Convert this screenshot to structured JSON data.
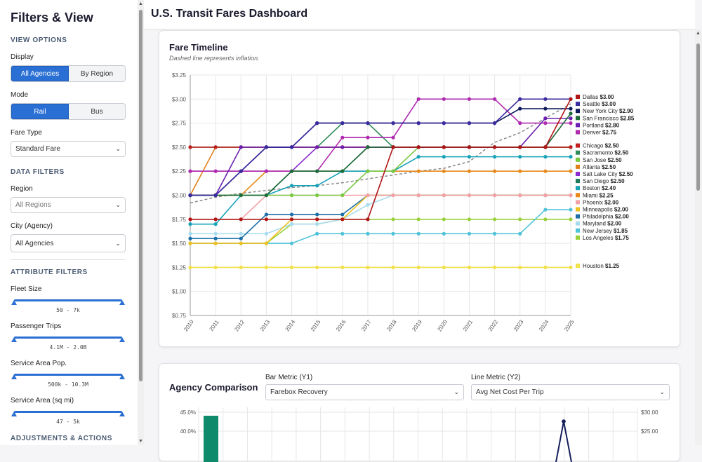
{
  "sidebar": {
    "title": "Filters & View",
    "view_options_heading": "VIEW OPTIONS",
    "display_label": "Display",
    "display_options": [
      "All Agencies",
      "By Region"
    ],
    "mode_label": "Mode",
    "mode_options": [
      "Rail",
      "Bus"
    ],
    "fare_type_label": "Fare Type",
    "fare_type_value": "Standard Fare",
    "data_filters_heading": "DATA FILTERS",
    "region_label": "Region",
    "region_value": "All Regions",
    "city_label": "City (Agency)",
    "city_value": "All Agencies",
    "attribute_filters_heading": "ATTRIBUTE FILTERS",
    "fleet_label": "Fleet Size",
    "fleet_range": "50 - 7k",
    "trips_label": "Passenger Trips",
    "trips_range": "4.1M - 2.0B",
    "pop_label": "Service Area Pop.",
    "pop_range": "500k - 10.3M",
    "area_label": "Service Area (sq mi)",
    "area_range": "47 - 5k",
    "adjustments_heading": "ADJUSTMENTS & ACTIONS"
  },
  "header": {
    "title": "U.S. Transit Fares Dashboard"
  },
  "timeline": {
    "title": "Fare Timeline",
    "subtitle": "Dashed line represents inflation."
  },
  "comparison": {
    "title": "Agency Comparison",
    "bar_metric_label": "Bar Metric (Y1)",
    "bar_metric_value": "Farebox Recovery",
    "line_metric_label": "Line Metric (Y2)",
    "line_metric_value": "Avg Net Cost Per Trip",
    "y1_ticks": [
      "45.0%",
      "40.0%"
    ],
    "y2_ticks": [
      "$30.00",
      "$25.00"
    ]
  },
  "chart_data": {
    "type": "line",
    "x": [
      2010,
      2011,
      2012,
      2013,
      2014,
      2015,
      2016,
      2017,
      2018,
      2019,
      2020,
      2021,
      2022,
      2023,
      2024,
      2025
    ],
    "ylim": [
      0.75,
      3.25
    ],
    "yticks": [
      "$0.75",
      "$1.00",
      "$1.25",
      "$1.50",
      "$1.75",
      "$2.00",
      "$2.25",
      "$2.50",
      "$2.75",
      "$3.00",
      "$3.25"
    ],
    "grid": true,
    "legend_position": "right",
    "series": [
      {
        "name": "Dallas",
        "label": "$3.00",
        "color": "#b01515",
        "values": [
          1.75,
          1.75,
          1.75,
          1.75,
          1.75,
          1.75,
          1.75,
          1.75,
          2.5,
          2.5,
          2.5,
          2.5,
          2.5,
          2.5,
          2.5,
          3.0
        ]
      },
      {
        "name": "Seattle",
        "label": "$3.00",
        "color": "#3a2aa0",
        "values": [
          2.0,
          2.0,
          2.25,
          2.5,
          2.5,
          2.75,
          2.75,
          2.75,
          2.75,
          2.75,
          2.75,
          2.75,
          2.75,
          3.0,
          3.0,
          3.0
        ]
      },
      {
        "name": "New York City",
        "label": "$2.90",
        "color": "#0f1a5c",
        "values": [
          2.0,
          2.0,
          2.25,
          2.5,
          2.5,
          2.75,
          2.75,
          2.75,
          2.75,
          2.75,
          2.75,
          2.75,
          2.75,
          2.9,
          2.9,
          2.9
        ]
      },
      {
        "name": "San Francisco",
        "label": "$2.85",
        "color": "#1e6b3a",
        "values": [
          2.0,
          2.0,
          2.0,
          2.0,
          2.25,
          2.25,
          2.25,
          2.5,
          2.5,
          2.5,
          2.5,
          2.5,
          2.5,
          2.5,
          2.5,
          2.85
        ]
      },
      {
        "name": "Portland",
        "label": "$2.80",
        "color": "#6a1fb0",
        "values": [
          2.0,
          2.0,
          2.5,
          2.5,
          2.5,
          2.5,
          2.5,
          2.5,
          2.5,
          2.5,
          2.5,
          2.5,
          2.5,
          2.5,
          2.8,
          2.8
        ]
      },
      {
        "name": "Denver",
        "label": "$2.75",
        "color": "#b02ab0",
        "values": [
          2.25,
          2.25,
          2.25,
          2.25,
          2.25,
          2.25,
          2.6,
          2.6,
          2.6,
          3.0,
          3.0,
          3.0,
          3.0,
          2.75,
          2.75,
          2.75
        ]
      },
      {
        "name": "Chicago",
        "label": "$2.50",
        "color": "#c21f1f",
        "values": [
          2.5,
          2.5,
          2.5,
          2.5,
          2.5,
          2.5,
          2.5,
          2.5,
          2.5,
          2.5,
          2.5,
          2.5,
          2.5,
          2.5,
          2.5,
          2.5
        ]
      },
      {
        "name": "Sacramento",
        "label": "$2.50",
        "color": "#2e8b57",
        "values": [
          2.5,
          2.5,
          2.5,
          2.5,
          2.5,
          2.5,
          2.75,
          2.75,
          2.5,
          2.5,
          2.5,
          2.5,
          2.5,
          2.5,
          2.5,
          2.5
        ]
      },
      {
        "name": "San Jose",
        "label": "$2.50",
        "color": "#7ac943",
        "values": [
          2.0,
          2.0,
          2.0,
          2.0,
          2.0,
          2.0,
          2.0,
          2.25,
          2.25,
          2.5,
          2.5,
          2.5,
          2.5,
          2.5,
          2.5,
          2.5
        ]
      },
      {
        "name": "Atlanta",
        "label": "$2.50",
        "color": "#e0821a",
        "values": [
          2.0,
          2.5,
          2.5,
          2.5,
          2.5,
          2.5,
          2.5,
          2.5,
          2.5,
          2.5,
          2.5,
          2.5,
          2.5,
          2.5,
          2.5,
          2.5
        ]
      },
      {
        "name": "Salt Lake City",
        "label": "$2.50",
        "color": "#8a2ad0",
        "values": [
          2.25,
          2.25,
          2.25,
          2.25,
          2.25,
          2.5,
          2.5,
          2.5,
          2.5,
          2.5,
          2.5,
          2.5,
          2.5,
          2.5,
          2.5,
          2.5
        ]
      },
      {
        "name": "San Diego",
        "label": "$2.50",
        "color": "#1a7a5a",
        "values": [
          2.0,
          2.0,
          2.0,
          2.0,
          2.25,
          2.25,
          2.25,
          2.5,
          2.5,
          2.5,
          2.5,
          2.5,
          2.5,
          2.5,
          2.5,
          2.5
        ]
      },
      {
        "name": "Boston",
        "label": "$2.40",
        "color": "#17a2b8",
        "values": [
          1.7,
          1.7,
          2.0,
          2.0,
          2.1,
          2.1,
          2.25,
          2.25,
          2.25,
          2.4,
          2.4,
          2.4,
          2.4,
          2.4,
          2.4,
          2.4
        ]
      },
      {
        "name": "Miami",
        "label": "$2.25",
        "color": "#e8891a",
        "values": [
          2.0,
          2.0,
          2.0,
          2.25,
          2.25,
          2.25,
          2.25,
          2.25,
          2.25,
          2.25,
          2.25,
          2.25,
          2.25,
          2.25,
          2.25,
          2.25
        ]
      },
      {
        "name": "Phoenix",
        "label": "$2.00",
        "color": "#f4a0a8",
        "values": [
          1.75,
          1.75,
          1.75,
          2.0,
          2.0,
          2.0,
          2.0,
          2.0,
          2.0,
          2.0,
          2.0,
          2.0,
          2.0,
          2.0,
          2.0,
          2.0
        ]
      },
      {
        "name": "Minneapolis",
        "label": "$2.00",
        "color": "#f0c020",
        "values": [
          1.5,
          1.5,
          1.5,
          1.5,
          1.75,
          1.75,
          1.75,
          2.0,
          2.0,
          2.0,
          2.0,
          2.0,
          2.0,
          2.0,
          2.0,
          2.0
        ]
      },
      {
        "name": "Philadelphia",
        "label": "$2.00",
        "color": "#1d6fa8",
        "values": [
          1.55,
          1.55,
          1.55,
          1.8,
          1.8,
          1.8,
          1.8,
          2.0,
          2.0,
          2.0,
          2.0,
          2.0,
          2.0,
          2.0,
          2.0,
          2.0
        ]
      },
      {
        "name": "Maryland",
        "label": "$2.00",
        "color": "#a8dcef",
        "values": [
          1.6,
          1.6,
          1.6,
          1.6,
          1.7,
          1.7,
          1.75,
          1.9,
          2.0,
          2.0,
          2.0,
          2.0,
          2.0,
          2.0,
          2.0,
          2.0
        ]
      },
      {
        "name": "New Jersey",
        "label": "$1.85",
        "color": "#4fc3d9",
        "values": [
          1.5,
          1.5,
          1.5,
          1.5,
          1.5,
          1.6,
          1.6,
          1.6,
          1.6,
          1.6,
          1.6,
          1.6,
          1.6,
          1.6,
          1.85,
          1.85
        ]
      },
      {
        "name": "Los Angeles",
        "label": "$1.75",
        "color": "#9ad13a",
        "values": [
          1.5,
          1.5,
          1.5,
          1.5,
          1.7,
          1.7,
          1.75,
          1.75,
          1.75,
          1.75,
          1.75,
          1.75,
          1.75,
          1.75,
          1.75,
          1.75
        ]
      },
      {
        "name": "Houston",
        "label": "$1.25",
        "color": "#f2e04a",
        "values": [
          1.25,
          1.25,
          1.25,
          1.25,
          1.25,
          1.25,
          1.25,
          1.25,
          1.25,
          1.25,
          1.25,
          1.25,
          1.25,
          1.25,
          1.25,
          1.25
        ]
      }
    ],
    "inflation": {
      "values": [
        1.92,
        1.98,
        2.02,
        2.05,
        2.08,
        2.1,
        2.13,
        2.17,
        2.21,
        2.25,
        2.28,
        2.35,
        2.55,
        2.65,
        2.8,
        2.95
      ],
      "color": "#888"
    }
  }
}
